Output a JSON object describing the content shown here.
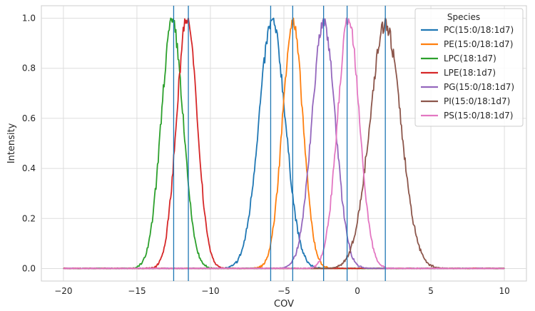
{
  "chart_data": {
    "type": "line",
    "title": "",
    "xlabel": "COV",
    "ylabel": "Intensity",
    "xlim": [
      -21.5,
      11.5
    ],
    "ylim": [
      -0.05,
      1.05
    ],
    "xticks": [
      -20,
      -15,
      -10,
      -5,
      0,
      5,
      10
    ],
    "yticks": [
      0.0,
      0.2,
      0.4,
      0.6,
      0.8,
      1.0
    ],
    "xtick_labels": [
      "−20",
      "−15",
      "−10",
      "−5",
      "0",
      "5",
      "10"
    ],
    "ytick_labels": [
      "0.0",
      "0.2",
      "0.4",
      "0.6",
      "0.8",
      "1.0"
    ],
    "grid": true,
    "legend": {
      "title": "Species",
      "placement": "top-right"
    },
    "x_range": [
      -20,
      10
    ],
    "series": [
      {
        "name": "PC(15:0/18:1d7)",
        "color": "#1f77b4",
        "center": -5.8,
        "sigma": 0.9
      },
      {
        "name": "PE(15:0/18:1d7)",
        "color": "#ff7f0e",
        "center": -4.4,
        "sigma": 0.7
      },
      {
        "name": "LPC(18:1d7)",
        "color": "#2ca02c",
        "center": -12.6,
        "sigma": 0.75
      },
      {
        "name": "LPE(18:1d7)",
        "color": "#d62728",
        "center": -11.6,
        "sigma": 0.7
      },
      {
        "name": "PG(15:0/18:1d7)",
        "color": "#9467bd",
        "center": -2.3,
        "sigma": 0.8
      },
      {
        "name": "PI(15:0/18:1d7)",
        "color": "#8c564b",
        "center": 1.9,
        "sigma": 1.05
      },
      {
        "name": "PS(15:0/18:1d7)",
        "color": "#e377c2",
        "center": -0.6,
        "sigma": 0.75
      }
    ],
    "vlines": {
      "color": "#1f77b4",
      "x": [
        -12.5,
        -11.5,
        -5.9,
        -4.4,
        -2.3,
        -0.7,
        1.9
      ]
    }
  }
}
